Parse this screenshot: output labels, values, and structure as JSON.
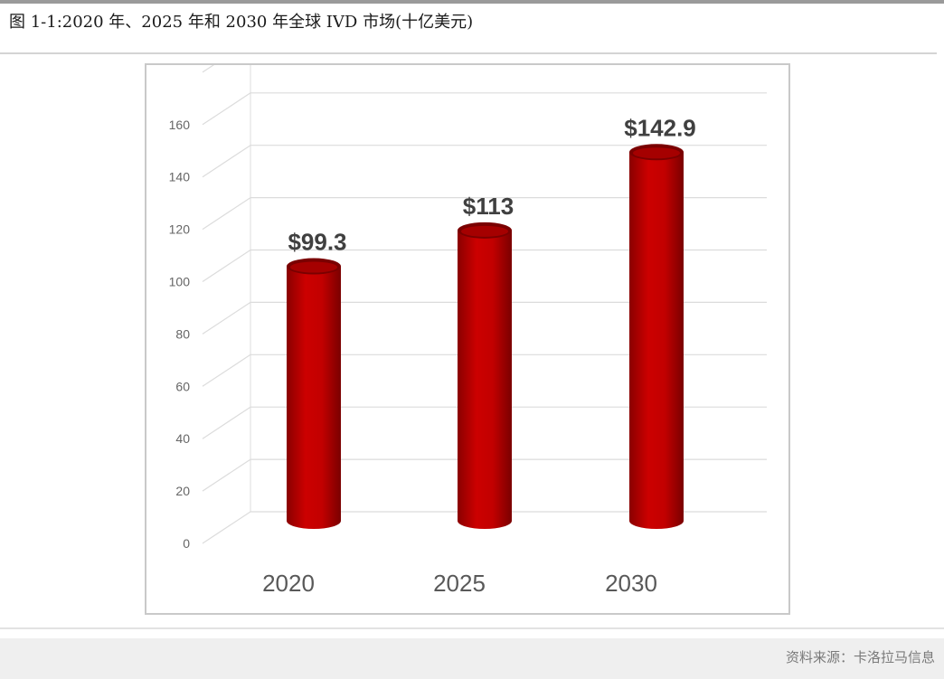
{
  "figure": {
    "title": "图 1-1:2020 年、2025 年和 2030 年全球 IVD 市场(十亿美元)",
    "source": "资料来源：卡洛拉马信息"
  },
  "colors": {
    "bar_dark": "#7a0000",
    "bar_mid": "#c80000",
    "bar_light": "#e32020",
    "grid": "#dcdcdc"
  },
  "chart_data": {
    "type": "bar",
    "style": "3d-cylinder",
    "categories": [
      "2020",
      "2025",
      "2030"
    ],
    "values": [
      99.3,
      113,
      142.9
    ],
    "data_labels": [
      "$99.3",
      "$113",
      "$142.9"
    ],
    "ylim": [
      0,
      180
    ],
    "yticks": [
      0,
      20,
      40,
      60,
      80,
      100,
      120,
      140,
      160
    ],
    "grid": true,
    "legend": false
  }
}
